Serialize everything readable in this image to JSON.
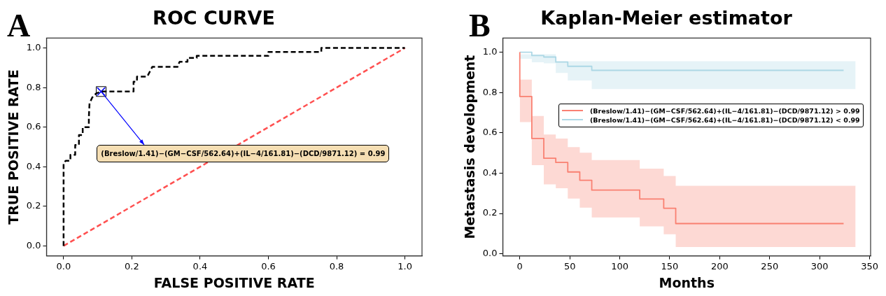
{
  "chart_data": [
    {
      "type": "line",
      "title": "ROC CURVE",
      "xlabel": "FALSE POSITIVE RATE",
      "ylabel": "TRUE POSITIVE RATE",
      "xlim": [
        -0.05,
        1.05
      ],
      "ylim": [
        -0.05,
        1.05
      ],
      "xticks": [
        {
          "value": 0,
          "label": "0.0"
        },
        {
          "value": 0.2,
          "label": "0.2"
        },
        {
          "value": 0.4,
          "label": "0.4"
        },
        {
          "value": 0.6,
          "label": "0.6"
        },
        {
          "value": 0.8,
          "label": "0.8"
        },
        {
          "value": 1,
          "label": "1.0"
        }
      ],
      "yticks": [
        {
          "value": 0,
          "label": "0.0"
        },
        {
          "value": 0.2,
          "label": "0.2"
        },
        {
          "value": 0.4,
          "label": "0.4"
        },
        {
          "value": 0.6,
          "label": "0.6"
        },
        {
          "value": 0.8,
          "label": "0.8"
        },
        {
          "value": 1,
          "label": "1.0"
        }
      ],
      "grid": false,
      "legend": false,
      "series": [
        {
          "color": "#000000",
          "line_style": "dashed",
          "x": [
            0,
            0,
            0.006,
            0.02,
            0.02,
            0.034,
            0.034,
            0.045,
            0.045,
            0.056,
            0.056,
            0.074,
            0.074,
            0.076,
            0.084,
            0.095,
            0.11,
            0.205,
            0.205,
            0.215,
            0.215,
            0.245,
            0.26,
            0.334,
            0.334,
            0.34,
            0.363,
            0.363,
            0.39,
            0.39,
            0.6,
            0.6,
            0.755,
            0.755,
            1
          ],
          "values": [
            0,
            0.42,
            0.43,
            0.43,
            0.46,
            0.46,
            0.51,
            0.51,
            0.56,
            0.56,
            0.6,
            0.6,
            0.65,
            0.72,
            0.75,
            0.77,
            0.78,
            0.78,
            0.83,
            0.83,
            0.855,
            0.855,
            0.905,
            0.905,
            0.91,
            0.93,
            0.93,
            0.95,
            0.95,
            0.96,
            0.96,
            0.98,
            0.98,
            1,
            1
          ]
        },
        {
          "color": "#ff5050",
          "line_style": "dashed",
          "x": [
            0,
            1
          ],
          "values": [
            0,
            1
          ]
        },
        {
          "type": "scatter",
          "color": "#0000ff",
          "marker": "cross",
          "x": [
            0.11
          ],
          "values": [
            0.78
          ]
        }
      ],
      "annotations": [
        "A",
        {
          "text": "(Breslow/1.41)−(GM−CSF/562.64)+(IL−4/161.81)−(DCD/9871.12) = 0.99",
          "x": 0.11,
          "y": 0.78
        }
      ]
    },
    {
      "type": "step",
      "title": "Kaplan-Meier estimator",
      "xlabel": "Months",
      "ylabel": "Metastasis development",
      "xlim": [
        -17,
        351
      ],
      "ylim": [
        -0.01,
        1.07
      ],
      "xticks": [
        0,
        50,
        100,
        150,
        200,
        250,
        300,
        350
      ],
      "yticks": [
        {
          "value": 0,
          "label": "0.0"
        },
        {
          "value": 0.2,
          "label": "0.2"
        },
        {
          "value": 0.4,
          "label": "0.4"
        },
        {
          "value": 0.6,
          "label": "0.6"
        },
        {
          "value": 0.8,
          "label": "0.8"
        },
        {
          "value": 1,
          "label": "1.0"
        }
      ],
      "grid": false,
      "legend": "right",
      "series": [
        {
          "name": "(Breslow/1.41)−(GM−CSF/562.64)+(IL−4/161.81)−(DCD/9871.12) > 0.99",
          "color": "#fa8072",
          "x": [
            0,
            12,
            24,
            36,
            48,
            60,
            72,
            120,
            144,
            156,
            276,
            324,
            336
          ],
          "values": [
            1,
            0.78,
            0.572,
            0.474,
            0.453,
            0.406,
            0.365,
            0.316,
            0.272,
            0.226,
            0.15,
            0.15,
            null
          ],
          "upper": [
            1,
            0.864,
            0.684,
            0.592,
            0.572,
            0.529,
            0.501,
            0.465,
            0.422,
            0.386,
            0.337,
            0.337,
            0.337
          ],
          "lower": [
            1,
            0.653,
            0.44,
            0.344,
            0.325,
            0.274,
            0.229,
            0.18,
            0.136,
            0.097,
            0.034,
            0.034,
            0.034
          ]
        },
        {
          "name": "(Breslow/1.41)−(GM−CSF/562.64)+(IL−4/161.81)−(DCD/9871.12) < 0.99",
          "color": "#add8e6",
          "x": [
            0,
            12,
            24,
            36,
            48,
            72,
            96,
            324,
            336
          ],
          "values": [
            1,
            1,
            0.983,
            0.976,
            0.951,
            0.93,
            0.91,
            0.91,
            null
          ],
          "upper": [
            1,
            0.99,
            0.99,
            0.99,
            0.955,
            0.955,
            0.955,
            0.955,
            0.955
          ],
          "lower": [
            1,
            0.967,
            0.95,
            0.945,
            0.897,
            0.86,
            0.817,
            0.817,
            0.817
          ]
        }
      ],
      "annotations": [
        "B"
      ]
    }
  ]
}
